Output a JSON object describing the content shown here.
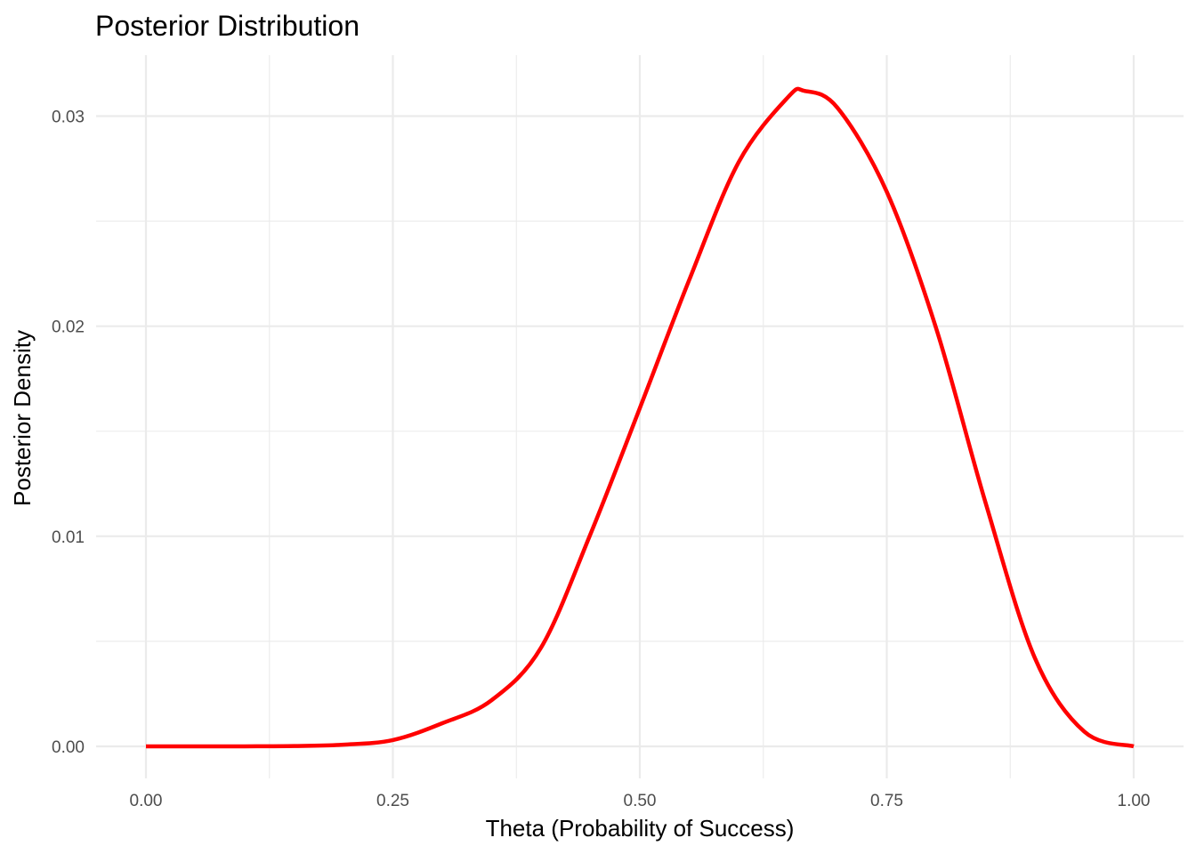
{
  "colors": {
    "line": "#ff0000",
    "grid": "#ebebeb",
    "tick_text": "#4d4d4d",
    "text": "#000000",
    "background": "#ffffff"
  },
  "chart_data": {
    "type": "line",
    "title": "Posterior Distribution",
    "xlabel": "Theta (Probability of Success)",
    "ylabel": "Posterior Density",
    "xlim": [
      0,
      1
    ],
    "ylim": [
      0,
      0.03
    ],
    "xticks": [
      0,
      0.25,
      0.5,
      0.75,
      1
    ],
    "xtick_labels": [
      "0.00",
      "0.25",
      "0.50",
      "0.75",
      "1.00"
    ],
    "yticks": [
      0,
      0.01,
      0.02,
      0.03
    ],
    "ytick_labels": [
      "0.00",
      "0.01",
      "0.02",
      "0.03"
    ],
    "grid": true,
    "legend": "none",
    "series": [
      {
        "x": [
          0,
          0.05,
          0.1,
          0.15,
          0.2,
          0.25,
          0.3,
          0.35,
          0.4,
          0.45,
          0.5,
          0.55,
          0.6,
          0.65,
          0.6667,
          0.7,
          0.75,
          0.8,
          0.85,
          0.9,
          0.95,
          1
        ],
        "y": [
          0,
          1e-07,
          2.3e-06,
          1.48e-05,
          7.78e-05,
          0.0003,
          0.0011,
          0.0022,
          0.0047,
          0.0101,
          0.0161,
          0.0222,
          0.0278,
          0.0309,
          0.0312,
          0.0304,
          0.0264,
          0.0199,
          0.0116,
          0.0042,
          0.0007,
          0
        ]
      }
    ]
  }
}
